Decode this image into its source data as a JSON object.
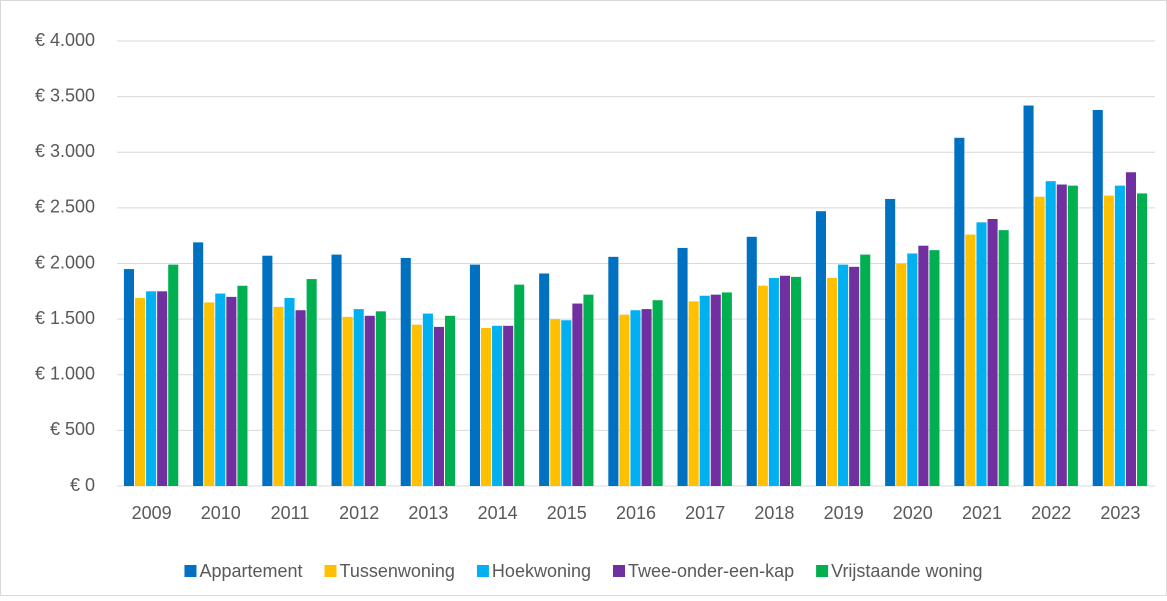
{
  "chart_data": {
    "type": "bar",
    "categories": [
      "2009",
      "2010",
      "2011",
      "2012",
      "2013",
      "2014",
      "2015",
      "2016",
      "2017",
      "2018",
      "2019",
      "2020",
      "2021",
      "2022",
      "2023"
    ],
    "series": [
      {
        "name": "Appartement",
        "color": "#0070c0",
        "values": [
          1950,
          2190,
          2070,
          2080,
          2050,
          1990,
          1910,
          2060,
          2140,
          2240,
          2470,
          2580,
          3130,
          3420,
          3380
        ]
      },
      {
        "name": "Tussenwoning",
        "color": "#ffc000",
        "values": [
          1690,
          1650,
          1610,
          1520,
          1450,
          1420,
          1500,
          1540,
          1660,
          1800,
          1870,
          2000,
          2260,
          2600,
          2610
        ]
      },
      {
        "name": "Hoekwoning",
        "color": "#00b0f0",
        "values": [
          1750,
          1730,
          1690,
          1590,
          1550,
          1440,
          1490,
          1580,
          1710,
          1870,
          1990,
          2090,
          2370,
          2740,
          2700
        ]
      },
      {
        "name": "Twee-onder-een-kap",
        "color": "#7030a0",
        "values": [
          1750,
          1700,
          1580,
          1530,
          1430,
          1440,
          1640,
          1590,
          1720,
          1890,
          1970,
          2160,
          2400,
          2710,
          2820
        ]
      },
      {
        "name": "Vrijstaande woning",
        "color": "#00b050",
        "values": [
          1990,
          1800,
          1860,
          1570,
          1530,
          1810,
          1720,
          1670,
          1740,
          1880,
          2080,
          2120,
          2300,
          2700,
          2630
        ]
      }
    ],
    "ylim": [
      0,
      4000
    ],
    "yticks": [
      {
        "value": 0,
        "label": "€ 0"
      },
      {
        "value": 500,
        "label": "€ 500"
      },
      {
        "value": 1000,
        "label": "€ 1.000"
      },
      {
        "value": 1500,
        "label": "€ 1.500"
      },
      {
        "value": 2000,
        "label": "€ 2.000"
      },
      {
        "value": 2500,
        "label": "€ 2.500"
      },
      {
        "value": 3000,
        "label": "€ 3.000"
      },
      {
        "value": 3500,
        "label": "€ 3.500"
      },
      {
        "value": 4000,
        "label": "€ 4.000"
      }
    ],
    "grid": true,
    "legend": "bottom"
  }
}
